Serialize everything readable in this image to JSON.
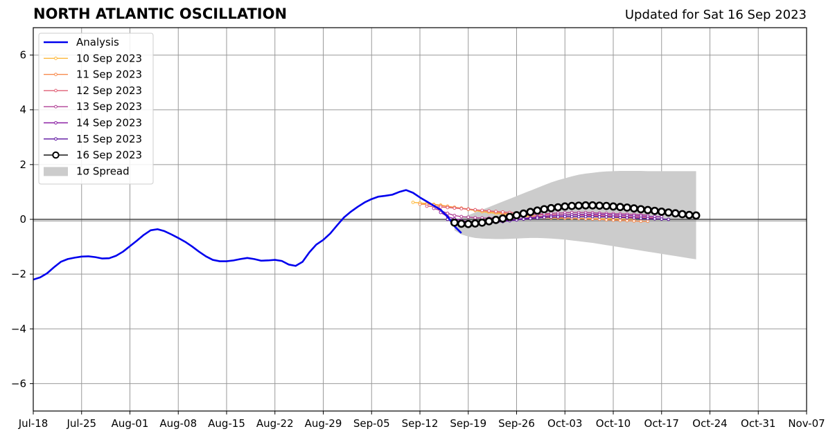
{
  "header": {
    "title": "NORTH ATLANTIC OSCILLATION",
    "updated": "Updated for Sat 16 Sep 2023"
  },
  "chart_data": {
    "type": "line",
    "title": "NORTH ATLANTIC OSCILLATION",
    "xlabel": "",
    "ylabel": "",
    "x_ticks": [
      "Jul-18",
      "Jul-25",
      "Aug-01",
      "Aug-08",
      "Aug-15",
      "Aug-22",
      "Aug-29",
      "Sep-05",
      "Sep-12",
      "Sep-19",
      "Sep-26",
      "Oct-03",
      "Oct-10",
      "Oct-17",
      "Oct-24",
      "Oct-31",
      "Nov-07"
    ],
    "x_tick_days": [
      0,
      7,
      14,
      21,
      28,
      35,
      42,
      49,
      56,
      63,
      70,
      77,
      84,
      91,
      98,
      105,
      112
    ],
    "y_ticks": [
      -6,
      -4,
      -2,
      0,
      2,
      4,
      6
    ],
    "xlim": [
      "2023-07-18",
      "2023-11-07"
    ],
    "ylim": [
      -7,
      7
    ],
    "grid": true,
    "legend_position": "top-left",
    "analysis": {
      "name": "Analysis",
      "color": "#0000ee",
      "start": "2023-07-18",
      "values": [
        -2.2,
        -2.12,
        -1.97,
        -1.75,
        -1.55,
        -1.45,
        -1.4,
        -1.36,
        -1.35,
        -1.38,
        -1.43,
        -1.42,
        -1.33,
        -1.18,
        -0.98,
        -0.78,
        -0.57,
        -0.4,
        -0.36,
        -0.43,
        -0.55,
        -0.68,
        -0.82,
        -0.99,
        -1.18,
        -1.35,
        -1.48,
        -1.53,
        -1.53,
        -1.5,
        -1.45,
        -1.41,
        -1.45,
        -1.51,
        -1.5,
        -1.48,
        -1.52,
        -1.65,
        -1.7,
        -1.55,
        -1.2,
        -0.92,
        -0.75,
        -0.52,
        -0.22,
        0.07,
        0.28,
        0.46,
        0.62,
        0.74,
        0.83,
        0.86,
        0.9,
        1.0,
        1.07,
        0.97,
        0.8,
        0.65,
        0.5,
        0.35,
        0.1,
        -0.25,
        -0.5
      ]
    },
    "forecasts": [
      {
        "name": "10 Sep 2023",
        "color": "#fdb83a",
        "start": "2023-09-11",
        "values": [
          0.62,
          0.6,
          0.58,
          0.55,
          0.52,
          0.48,
          0.44,
          0.4,
          0.36,
          0.32,
          0.28,
          0.25,
          0.22,
          0.19,
          0.16,
          0.13,
          0.11,
          0.09,
          0.07,
          0.06,
          0.05,
          0.05,
          0.04,
          0.04,
          0.03,
          0.03,
          0.03,
          0.02,
          0.02,
          0.02,
          0.01,
          0.01,
          0.01
        ]
      },
      {
        "name": "11 Sep 2023",
        "color": "#f7894b",
        "start": "2023-09-12",
        "values": [
          0.55,
          0.55,
          0.53,
          0.5,
          0.47,
          0.44,
          0.41,
          0.38,
          0.35,
          0.32,
          0.29,
          0.26,
          0.23,
          0.2,
          0.18,
          0.16,
          0.14,
          0.12,
          0.1,
          0.08,
          0.06,
          0.05,
          0.04,
          0.03,
          0.02,
          0.01,
          0.0,
          -0.02,
          -0.03,
          -0.04,
          -0.05,
          -0.06,
          -0.07,
          -0.07
        ]
      },
      {
        "name": "12 Sep 2023",
        "color": "#df5f75",
        "start": "2023-09-13",
        "values": [
          0.48,
          0.47,
          0.45,
          0.43,
          0.41,
          0.39,
          0.37,
          0.35,
          0.33,
          0.31,
          0.29,
          0.27,
          0.25,
          0.23,
          0.21,
          0.19,
          0.18,
          0.17,
          0.17,
          0.17,
          0.17,
          0.17,
          0.16,
          0.15,
          0.14,
          0.13,
          0.12,
          0.11,
          0.1,
          0.09,
          0.08,
          0.07,
          0.06,
          0.05
        ]
      },
      {
        "name": "13 Sep 2023",
        "color": "#b13f94",
        "start": "2023-09-14",
        "values": [
          0.4,
          0.32,
          0.22,
          0.14,
          0.1,
          0.08,
          0.06,
          0.05,
          0.05,
          0.06,
          0.08,
          0.1,
          0.12,
          0.15,
          0.17,
          0.19,
          0.2,
          0.22,
          0.23,
          0.24,
          0.25,
          0.25,
          0.25,
          0.24,
          0.23,
          0.22,
          0.21,
          0.2,
          0.19,
          0.18,
          0.17,
          0.16
        ]
      },
      {
        "name": "14 Sep 2023",
        "color": "#8a1ea3",
        "start": "2023-09-15",
        "values": [
          0.25,
          0.1,
          0.02,
          -0.04,
          -0.08,
          -0.1,
          -0.11,
          -0.11,
          -0.09,
          -0.06,
          -0.03,
          0.0,
          0.03,
          0.06,
          0.09,
          0.11,
          0.13,
          0.15,
          0.16,
          0.17,
          0.18,
          0.18,
          0.18,
          0.18,
          0.17,
          0.16,
          0.15,
          0.14,
          0.13,
          0.12,
          0.11,
          0.1,
          0.09
        ]
      },
      {
        "name": "15 Sep 2023",
        "color": "#5a0f9e",
        "start": "2023-09-16",
        "values": [
          0.0,
          -0.05,
          -0.09,
          -0.12,
          -0.14,
          -0.14,
          -0.13,
          -0.11,
          -0.08,
          -0.05,
          -0.02,
          0.01,
          0.03,
          0.05,
          0.07,
          0.08,
          0.09,
          0.1,
          0.1,
          0.1,
          0.1,
          0.1,
          0.09,
          0.09,
          0.08,
          0.07,
          0.06,
          0.05,
          0.04,
          0.03,
          0.02,
          0.01,
          0.0
        ]
      }
    ],
    "latest": {
      "name": "16 Sep 2023",
      "color": "#000000",
      "start": "2023-09-17",
      "values": [
        -0.12,
        -0.16,
        -0.17,
        -0.15,
        -0.12,
        -0.07,
        -0.02,
        0.03,
        0.09,
        0.15,
        0.21,
        0.27,
        0.32,
        0.37,
        0.41,
        0.44,
        0.47,
        0.49,
        0.5,
        0.51,
        0.51,
        0.5,
        0.49,
        0.47,
        0.45,
        0.43,
        0.4,
        0.37,
        0.34,
        0.31,
        0.28,
        0.25,
        0.22,
        0.19,
        0.16,
        0.14
      ]
    },
    "spread": {
      "name": "1σ Spread",
      "color": "#cccccc",
      "start": "2023-09-17",
      "upper": [
        -0.05,
        0.05,
        0.15,
        0.25,
        0.35,
        0.45,
        0.55,
        0.65,
        0.75,
        0.85,
        0.95,
        1.05,
        1.15,
        1.25,
        1.35,
        1.43,
        1.5,
        1.57,
        1.63,
        1.67,
        1.7,
        1.73,
        1.75,
        1.76,
        1.77,
        1.77,
        1.77,
        1.77,
        1.76,
        1.76,
        1.76,
        1.76,
        1.76,
        1.76,
        1.76,
        1.76
      ],
      "lower": [
        -0.4,
        -0.55,
        -0.63,
        -0.68,
        -0.7,
        -0.71,
        -0.72,
        -0.72,
        -0.71,
        -0.7,
        -0.69,
        -0.68,
        -0.68,
        -0.69,
        -0.7,
        -0.72,
        -0.74,
        -0.77,
        -0.8,
        -0.83,
        -0.86,
        -0.9,
        -0.94,
        -0.98,
        -1.02,
        -1.06,
        -1.1,
        -1.14,
        -1.18,
        -1.22,
        -1.26,
        -1.3,
        -1.34,
        -1.38,
        -1.42,
        -1.46
      ]
    }
  }
}
